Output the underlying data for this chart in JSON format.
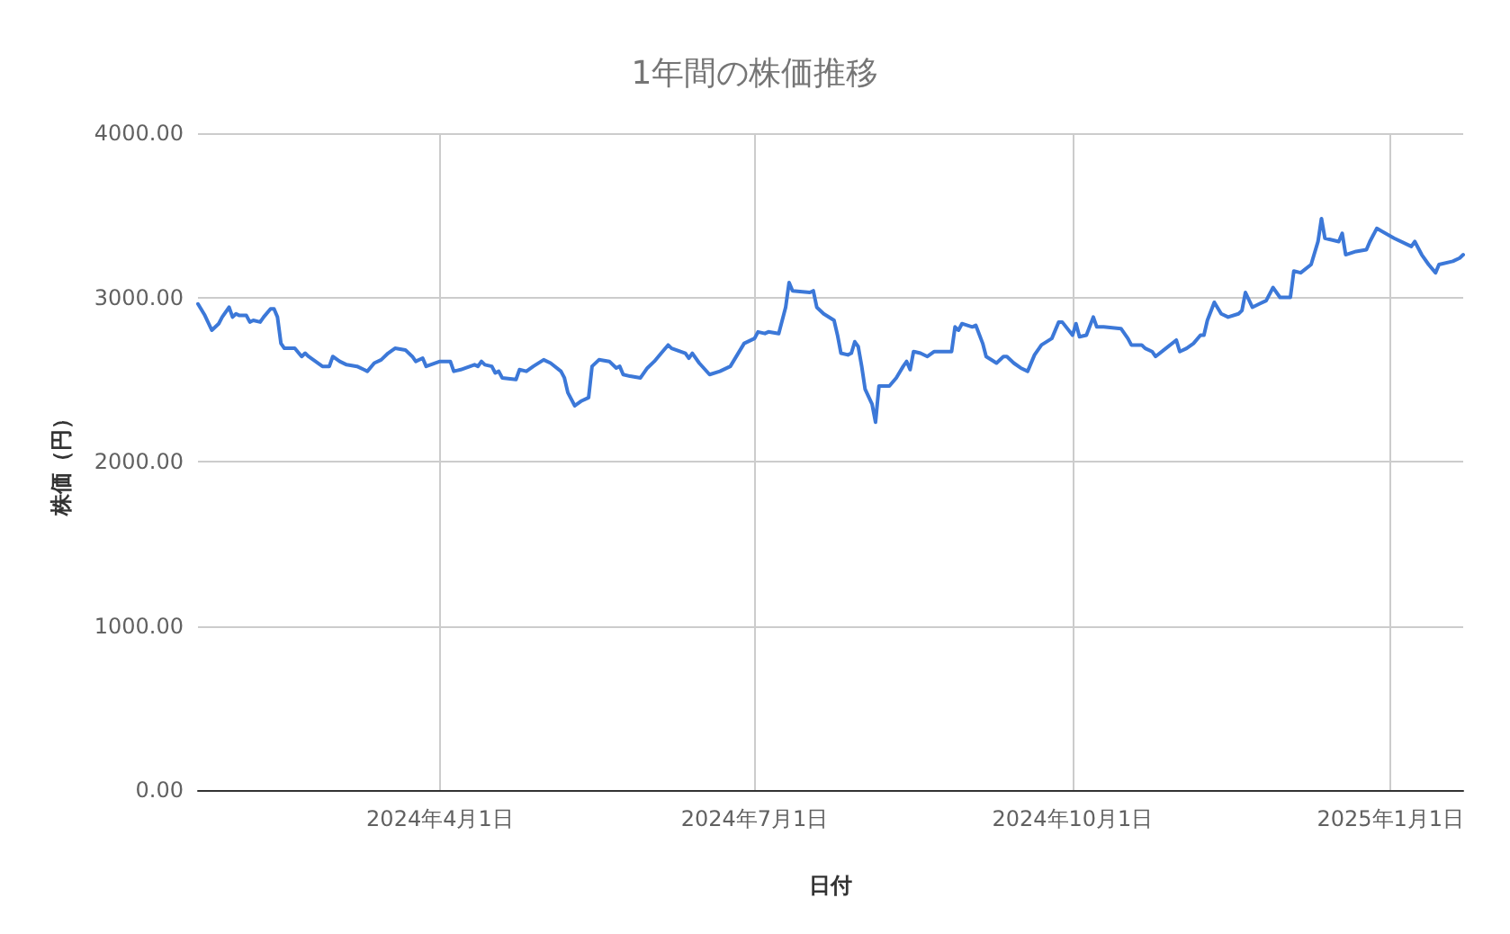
{
  "chart_data": {
    "type": "line",
    "title": "1年間の株価推移",
    "xlabel": "日付",
    "ylabel": "株価（円）",
    "x": [
      "2024-01-22",
      "2024-01-24",
      "2024-01-26",
      "2024-01-28",
      "2024-01-29",
      "2024-01-31",
      "2024-02-01",
      "2024-02-02",
      "2024-02-03",
      "2024-02-05",
      "2024-02-06",
      "2024-02-07",
      "2024-02-09",
      "2024-02-10",
      "2024-02-12",
      "2024-02-13",
      "2024-02-14",
      "2024-02-15",
      "2024-02-16",
      "2024-02-19",
      "2024-02-21",
      "2024-02-22",
      "2024-02-23",
      "2024-02-25",
      "2024-02-27",
      "2024-02-29",
      "2024-03-01",
      "2024-03-03",
      "2024-03-05",
      "2024-03-08",
      "2024-03-10",
      "2024-03-11",
      "2024-03-13",
      "2024-03-15",
      "2024-03-17",
      "2024-03-19",
      "2024-03-22",
      "2024-03-24",
      "2024-03-25",
      "2024-03-27",
      "2024-03-28",
      "2024-04-01",
      "2024-04-04",
      "2024-04-05",
      "2024-04-07",
      "2024-04-11",
      "2024-04-12",
      "2024-04-13",
      "2024-04-14",
      "2024-04-16",
      "2024-04-17",
      "2024-04-18",
      "2024-04-19",
      "2024-04-23",
      "2024-04-24",
      "2024-04-26",
      "2024-04-28",
      "2024-05-01",
      "2024-05-03",
      "2024-05-06",
      "2024-05-07",
      "2024-05-08",
      "2024-05-10",
      "2024-05-12",
      "2024-05-14",
      "2024-05-15",
      "2024-05-17",
      "2024-05-20",
      "2024-05-22",
      "2024-05-23",
      "2024-05-24",
      "2024-05-26",
      "2024-05-29",
      "2024-05-31",
      "2024-06-02",
      "2024-06-04",
      "2024-06-06",
      "2024-06-07",
      "2024-06-11",
      "2024-06-12",
      "2024-06-13",
      "2024-06-15",
      "2024-06-18",
      "2024-06-21",
      "2024-06-24",
      "2024-06-26",
      "2024-06-28",
      "2024-07-01",
      "2024-07-02",
      "2024-07-04",
      "2024-07-05",
      "2024-07-08",
      "2024-07-10",
      "2024-07-11",
      "2024-07-12",
      "2024-07-17",
      "2024-07-18",
      "2024-07-19",
      "2024-07-21",
      "2024-07-24",
      "2024-07-25",
      "2024-07-26",
      "2024-07-28",
      "2024-07-29",
      "2024-07-30",
      "2024-07-31",
      "2024-08-01",
      "2024-08-02",
      "2024-08-04",
      "2024-08-05",
      "2024-08-06",
      "2024-08-09",
      "2024-08-11",
      "2024-08-13",
      "2024-08-14",
      "2024-08-15",
      "2024-08-16",
      "2024-08-18",
      "2024-08-20",
      "2024-08-22",
      "2024-08-27",
      "2024-08-28",
      "2024-08-29",
      "2024-08-30",
      "2024-09-02",
      "2024-09-03",
      "2024-09-05",
      "2024-09-06",
      "2024-09-09",
      "2024-09-11",
      "2024-09-12",
      "2024-09-14",
      "2024-09-16",
      "2024-09-18",
      "2024-09-20",
      "2024-09-22",
      "2024-09-25",
      "2024-09-27",
      "2024-09-28",
      "2024-10-01",
      "2024-10-02",
      "2024-10-03",
      "2024-10-05",
      "2024-10-07",
      "2024-10-08",
      "2024-10-10",
      "2024-10-15",
      "2024-10-17",
      "2024-10-18",
      "2024-10-21",
      "2024-10-22",
      "2024-10-24",
      "2024-10-25",
      "2024-10-28",
      "2024-10-31",
      "2024-11-01",
      "2024-11-03",
      "2024-11-05",
      "2024-11-07",
      "2024-11-08",
      "2024-11-09",
      "2024-11-11",
      "2024-11-13",
      "2024-11-15",
      "2024-11-18",
      "2024-11-19",
      "2024-11-20",
      "2024-11-22",
      "2024-11-24",
      "2024-11-26",
      "2024-11-28",
      "2024-11-30",
      "2024-12-03",
      "2024-12-04",
      "2024-12-06",
      "2024-12-09",
      "2024-12-11",
      "2024-12-12",
      "2024-12-13",
      "2024-12-17",
      "2024-12-18",
      "2024-12-19",
      "2024-12-22",
      "2024-12-25",
      "2024-12-26",
      "2024-12-28",
      "2025-01-02",
      "2025-01-07",
      "2025-01-08",
      "2025-01-10",
      "2025-01-12",
      "2025-01-14",
      "2025-01-15",
      "2025-01-19",
      "2025-01-21",
      "2025-01-22"
    ],
    "values": [
      2960,
      2890,
      2800,
      2840,
      2880,
      2940,
      2880,
      2900,
      2890,
      2890,
      2850,
      2860,
      2850,
      2880,
      2930,
      2930,
      2880,
      2720,
      2690,
      2690,
      2640,
      2660,
      2640,
      2610,
      2580,
      2580,
      2640,
      2610,
      2590,
      2580,
      2560,
      2550,
      2600,
      2620,
      2660,
      2690,
      2680,
      2640,
      2610,
      2630,
      2580,
      2610,
      2610,
      2550,
      2560,
      2590,
      2580,
      2610,
      2590,
      2580,
      2540,
      2550,
      2510,
      2500,
      2560,
      2550,
      2580,
      2620,
      2600,
      2550,
      2510,
      2420,
      2340,
      2370,
      2390,
      2580,
      2620,
      2610,
      2570,
      2580,
      2530,
      2520,
      2510,
      2570,
      2610,
      2660,
      2710,
      2690,
      2660,
      2630,
      2660,
      2600,
      2530,
      2550,
      2580,
      2650,
      2720,
      2750,
      2790,
      2780,
      2790,
      2780,
      2940,
      3090,
      3040,
      3030,
      3040,
      2940,
      2900,
      2860,
      2770,
      2660,
      2650,
      2660,
      2730,
      2700,
      2580,
      2440,
      2350,
      2240,
      2460,
      2460,
      2510,
      2580,
      2610,
      2560,
      2670,
      2660,
      2640,
      2670,
      2670,
      2820,
      2800,
      2840,
      2820,
      2830,
      2720,
      2640,
      2600,
      2640,
      2640,
      2600,
      2570,
      2550,
      2650,
      2710,
      2750,
      2850,
      2850,
      2770,
      2840,
      2760,
      2770,
      2880,
      2820,
      2820,
      2810,
      2750,
      2710,
      2710,
      2690,
      2670,
      2640,
      2690,
      2740,
      2670,
      2690,
      2720,
      2770,
      2770,
      2860,
      2970,
      2900,
      2880,
      2900,
      2920,
      3030,
      2940,
      2960,
      2980,
      3060,
      3000,
      3000,
      3160,
      3150,
      3200,
      3340,
      3480,
      3360,
      3340,
      3390,
      3260,
      3280,
      3290,
      3340,
      3420,
      3360,
      3310,
      3340,
      3260,
      3200,
      3150,
      3200,
      3220,
      3240,
      3260
    ],
    "color": "#3c78d8",
    "xlim": [
      "2024-01-22",
      "2025-01-22"
    ],
    "xticks": [
      {
        "value": "2024-04-01",
        "label": "2024年4月1日"
      },
      {
        "value": "2024-07-01",
        "label": "2024年7月1日"
      },
      {
        "value": "2024-10-01",
        "label": "2024年10月1日"
      },
      {
        "value": "2025-01-01",
        "label": "2025年1月1日"
      }
    ],
    "ylim": [
      0,
      4000
    ],
    "yticks": [
      {
        "value": 0,
        "label": "0.00"
      },
      {
        "value": 1000,
        "label": "1000.00"
      },
      {
        "value": 2000,
        "label": "2000.00"
      },
      {
        "value": 3000,
        "label": "3000.00"
      },
      {
        "value": 4000,
        "label": "4000.00"
      }
    ],
    "grid": true
  }
}
